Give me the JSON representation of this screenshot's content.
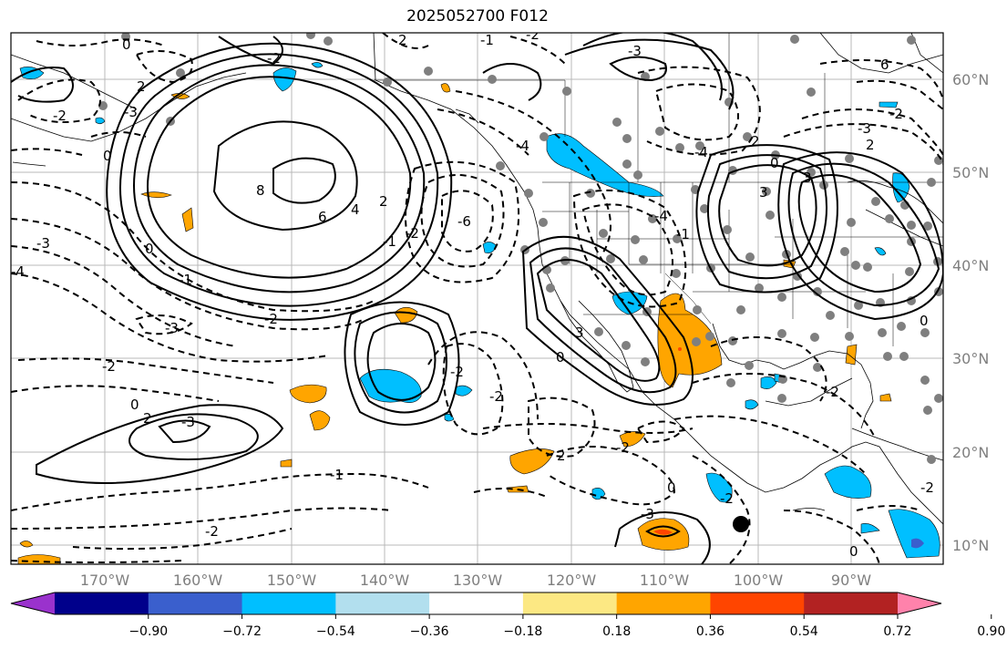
{
  "title": "2025052700 F012",
  "lon_labels": [
    "170°W",
    "160°W",
    "150°W",
    "140°W",
    "130°W",
    "120°W",
    "110°W",
    "100°W",
    "90°W"
  ],
  "lat_labels": [
    "60°N",
    "50°N",
    "40°N",
    "30°N",
    "20°N",
    "10°N"
  ],
  "colorbar": {
    "colors": [
      "#9a32cd",
      "#00008b",
      "#3a5fcd",
      "#00bfff",
      "#b2dfee",
      "#ffffff",
      "#fce883",
      "#ffa500",
      "#ff4500",
      "#b22222",
      "#ff82ab"
    ],
    "tick_labels": [
      "−0.90",
      "−0.72",
      "−0.54",
      "−0.36",
      "−0.18",
      "0.18",
      "0.36",
      "0.54",
      "0.72",
      "0.90"
    ]
  },
  "contour_labels": [
    "0",
    "2",
    "2",
    "-1",
    "0",
    "-2",
    "-3",
    "-3",
    "-4",
    "0",
    "8",
    "6",
    "4",
    "2",
    "-1",
    "-2",
    "-3",
    "-2",
    "-1",
    "-3",
    "-2",
    "-2",
    "0",
    "2",
    "-1",
    "-2",
    "-4",
    "-6",
    "-4",
    "3",
    "0",
    "-2",
    "-2",
    "2",
    "-2",
    "3",
    "-3",
    "2",
    "3",
    "0",
    "2",
    "6",
    "-3",
    "-2",
    "-4",
    "0",
    "-1",
    "0",
    "-3",
    "-2",
    "-2",
    "-2",
    "-2",
    "0"
  ],
  "colors": {
    "positive_fill": "#ffa500",
    "negative_fill": "#00bfff",
    "station_dot": "#7f7f7f",
    "grid": "#b0b0b0"
  }
}
